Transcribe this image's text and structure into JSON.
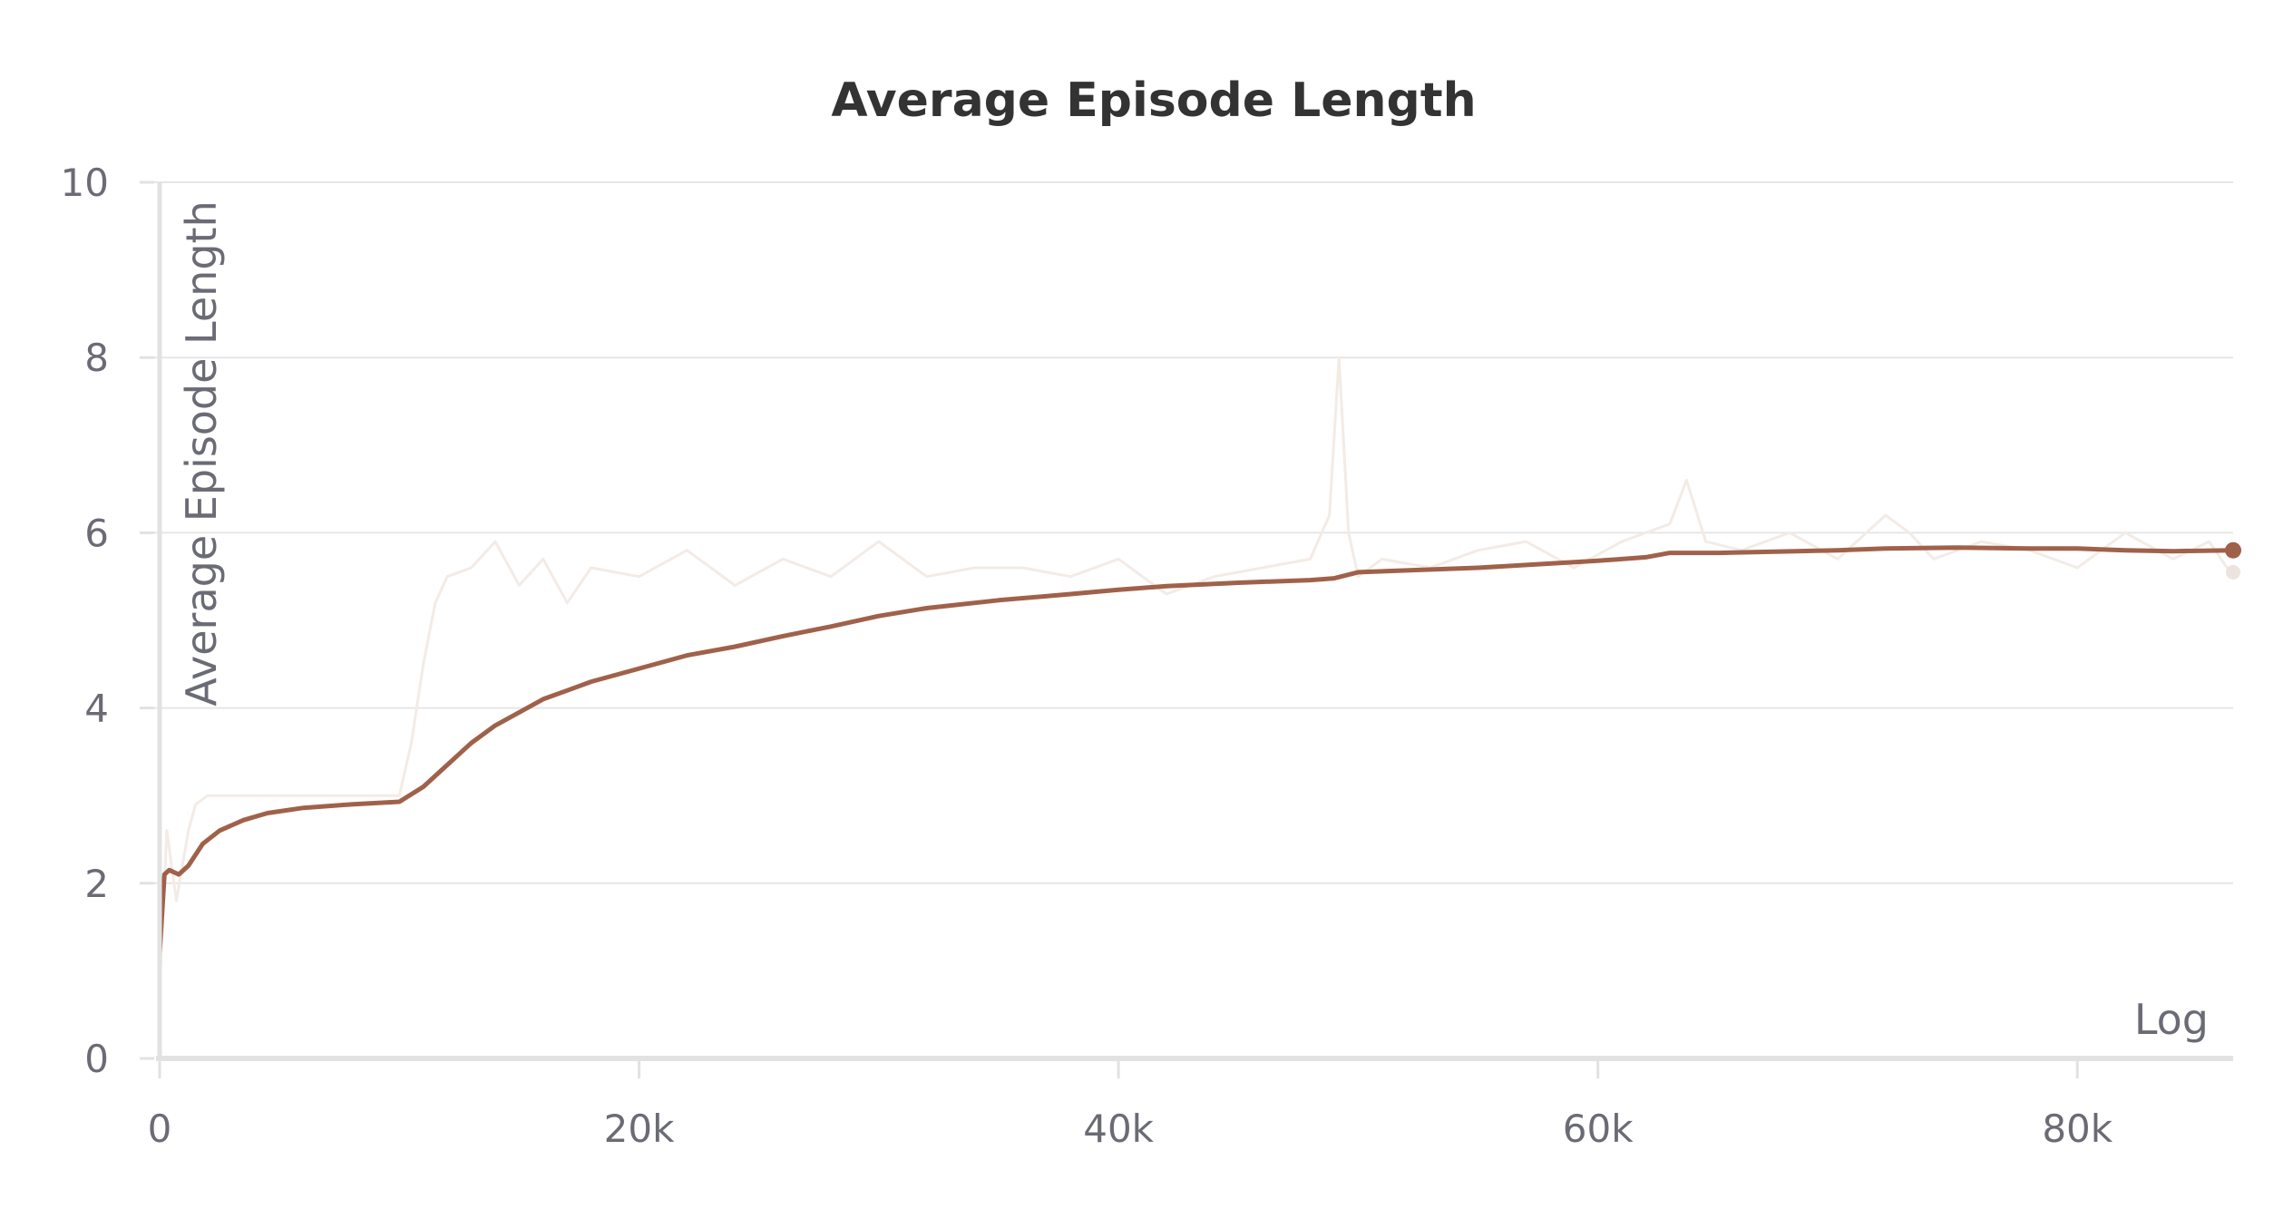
{
  "chart_data": {
    "type": "line",
    "title": "Average Episode Length",
    "ylabel": "Average Episode Length",
    "xlabel": "Log",
    "xlim": [
      0,
      86500
    ],
    "ylim": [
      0,
      10
    ],
    "x_ticks": [
      0,
      20000,
      40000,
      60000,
      80000
    ],
    "x_tick_labels": [
      "0",
      "20k",
      "40k",
      "60k",
      "80k"
    ],
    "y_ticks": [
      0,
      2,
      4,
      6,
      8,
      10
    ],
    "y_tick_labels": [
      "0",
      "2",
      "4",
      "6",
      "8",
      "10"
    ],
    "grid": true,
    "colors": {
      "smoothed": "#a0614a",
      "raw": "#f3ebe6",
      "grid": "#e6e6e6",
      "axis": "#e2e2e2"
    },
    "series": [
      {
        "role": "smoothed",
        "x": [
          0,
          200,
          400,
          800,
          1200,
          1800,
          2500,
          3500,
          4500,
          6000,
          8000,
          10000,
          11000,
          12000,
          13000,
          14000,
          15000,
          16000,
          17000,
          18000,
          20000,
          22000,
          24000,
          26000,
          28000,
          30000,
          32000,
          35000,
          38000,
          40000,
          42000,
          45000,
          48000,
          49000,
          50000,
          55000,
          60000,
          62000,
          63000,
          65000,
          70000,
          72000,
          75000,
          78000,
          80000,
          82000,
          84000,
          86500
        ],
        "y": [
          1.2,
          2.1,
          2.15,
          2.1,
          2.2,
          2.45,
          2.6,
          2.72,
          2.8,
          2.86,
          2.9,
          2.93,
          3.1,
          3.35,
          3.6,
          3.8,
          3.95,
          4.1,
          4.2,
          4.3,
          4.45,
          4.6,
          4.7,
          4.82,
          4.93,
          5.05,
          5.14,
          5.23,
          5.3,
          5.35,
          5.39,
          5.43,
          5.46,
          5.48,
          5.55,
          5.6,
          5.68,
          5.72,
          5.77,
          5.77,
          5.8,
          5.82,
          5.83,
          5.82,
          5.82,
          5.8,
          5.79,
          5.8
        ]
      },
      {
        "role": "raw",
        "x": [
          0,
          300,
          700,
          1200,
          1500,
          2000,
          4000,
          6000,
          8000,
          10000,
          10500,
          11000,
          11500,
          12000,
          13000,
          14000,
          15000,
          16000,
          17000,
          18000,
          20000,
          22000,
          24000,
          26000,
          28000,
          30000,
          32000,
          34000,
          36000,
          38000,
          40000,
          42000,
          44000,
          46000,
          48000,
          48800,
          49200,
          49600,
          50000,
          51000,
          53000,
          55000,
          57000,
          59000,
          61000,
          63000,
          63700,
          64500,
          66000,
          68000,
          70000,
          72000,
          73000,
          74000,
          76000,
          78000,
          80000,
          82000,
          84000,
          85500,
          86500
        ],
        "y": [
          0.8,
          2.6,
          1.8,
          2.6,
          2.9,
          3.0,
          3.0,
          3.0,
          3.0,
          3.0,
          3.6,
          4.5,
          5.2,
          5.5,
          5.6,
          5.9,
          5.4,
          5.7,
          5.2,
          5.6,
          5.5,
          5.8,
          5.4,
          5.7,
          5.5,
          5.9,
          5.5,
          5.6,
          5.6,
          5.5,
          5.7,
          5.3,
          5.5,
          5.6,
          5.7,
          6.2,
          8.0,
          6.0,
          5.5,
          5.7,
          5.6,
          5.8,
          5.9,
          5.6,
          5.9,
          6.1,
          6.6,
          5.9,
          5.8,
          6.0,
          5.7,
          6.2,
          6.0,
          5.7,
          5.9,
          5.8,
          5.6,
          6.0,
          5.7,
          5.9,
          5.5
        ]
      }
    ],
    "end_markers": [
      {
        "series": "smoothed",
        "x": 86500,
        "y": 5.8
      },
      {
        "series": "raw",
        "x": 86500,
        "y": 5.55
      }
    ]
  }
}
